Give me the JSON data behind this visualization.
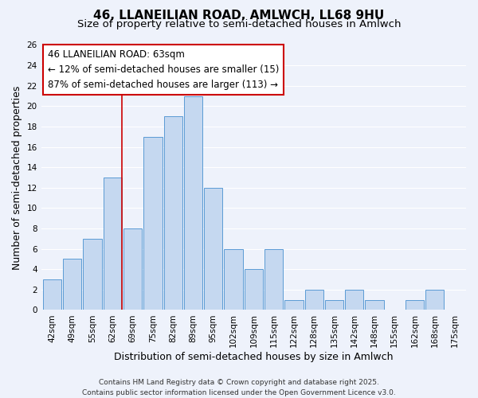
{
  "title": "46, LLANEILIAN ROAD, AMLWCH, LL68 9HU",
  "subtitle": "Size of property relative to semi-detached houses in Amlwch",
  "xlabel": "Distribution of semi-detached houses by size in Amlwch",
  "ylabel": "Number of semi-detached properties",
  "bin_labels": [
    "42sqm",
    "49sqm",
    "55sqm",
    "62sqm",
    "69sqm",
    "75sqm",
    "82sqm",
    "89sqm",
    "95sqm",
    "102sqm",
    "109sqm",
    "115sqm",
    "122sqm",
    "128sqm",
    "135sqm",
    "142sqm",
    "148sqm",
    "155sqm",
    "162sqm",
    "168sqm",
    "175sqm"
  ],
  "bar_values": [
    3,
    5,
    7,
    13,
    8,
    17,
    19,
    21,
    12,
    6,
    4,
    6,
    1,
    2,
    1,
    2,
    1,
    0,
    1,
    2,
    0
  ],
  "bar_color": "#c5d8f0",
  "bar_edge_color": "#5b9bd5",
  "vline_x_index": 3,
  "vline_color": "#cc0000",
  "annotation_lines": [
    "46 LLANEILIAN ROAD: 63sqm",
    "← 12% of semi-detached houses are smaller (15)",
    "87% of semi-detached houses are larger (113) →"
  ],
  "annotation_box_color": "#ffffff",
  "annotation_box_edge": "#cc0000",
  "ylim": [
    0,
    26
  ],
  "yticks": [
    0,
    2,
    4,
    6,
    8,
    10,
    12,
    14,
    16,
    18,
    20,
    22,
    24,
    26
  ],
  "background_color": "#eef2fb",
  "grid_color": "#ffffff",
  "footer_line1": "Contains HM Land Registry data © Crown copyright and database right 2025.",
  "footer_line2": "Contains public sector information licensed under the Open Government Licence v3.0.",
  "title_fontsize": 11,
  "subtitle_fontsize": 9.5,
  "axis_label_fontsize": 9,
  "tick_fontsize": 7.5,
  "annotation_fontsize": 8.5,
  "footer_fontsize": 6.5
}
